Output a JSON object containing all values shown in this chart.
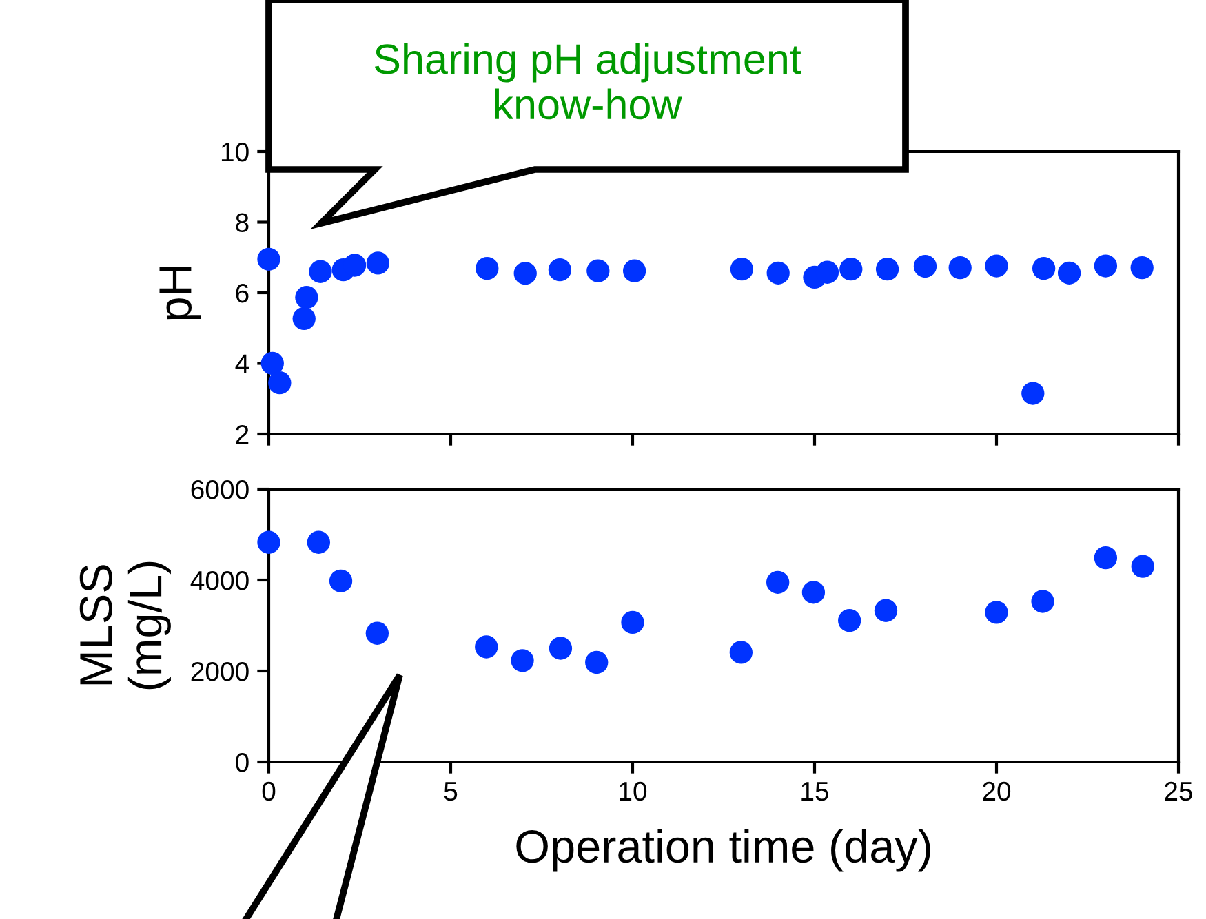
{
  "chart_data": [
    {
      "type": "scatter",
      "ylabel": "pH",
      "marker": "circle",
      "color": "#0033ff",
      "tick_labels": "y",
      "annotations": [
        "Sharing pH adjustment know-how"
      ],
      "x": [
        0,
        0.1,
        0.3,
        0.97,
        1.04,
        1.42,
        2.05,
        2.36,
        3.0,
        6.0,
        7.05,
        8.0,
        9.05,
        10.05,
        13.0,
        14.0,
        15.0,
        15.35,
        16.0,
        17.0,
        18.04,
        19.0,
        20.0,
        21.0,
        21.3,
        22.0,
        23.0,
        24.0
      ],
      "values": [
        6.95,
        4.0,
        3.45,
        5.27,
        5.87,
        6.6,
        6.65,
        6.78,
        6.84,
        6.69,
        6.55,
        6.65,
        6.62,
        6.62,
        6.67,
        6.56,
        6.44,
        6.58,
        6.67,
        6.67,
        6.75,
        6.71,
        6.76,
        3.15,
        6.69,
        6.56,
        6.76,
        6.71
      ],
      "xlim": [
        0,
        25
      ],
      "xticks": [
        0,
        5,
        10,
        15,
        20,
        25
      ],
      "ylim": [
        2,
        10
      ],
      "yticks": [
        2,
        4,
        6,
        8,
        10
      ]
    },
    {
      "type": "scatter",
      "ylabel": "MLSS\n(mg/L)",
      "xlabel": "Operation time (day)",
      "marker": "circle",
      "color": "#0033ff",
      "x": [
        0,
        1.37,
        1.98,
        2.98,
        5.98,
        6.97,
        8.02,
        9.01,
        10.0,
        12.98,
        13.99,
        14.97,
        15.96,
        16.96,
        20.0,
        21.27,
        23.0,
        24.02
      ],
      "values": [
        4830,
        4830,
        3980,
        2830,
        2530,
        2230,
        2500,
        2190,
        3070,
        2410,
        3950,
        3730,
        3110,
        3330,
        3290,
        3530,
        4490,
        4300
      ],
      "xlim": [
        0,
        25
      ],
      "xticks": [
        0,
        5,
        10,
        15,
        20,
        25
      ],
      "ylim": [
        0,
        6000
      ],
      "yticks": [
        0,
        2000,
        4000,
        6000
      ]
    }
  ]
}
